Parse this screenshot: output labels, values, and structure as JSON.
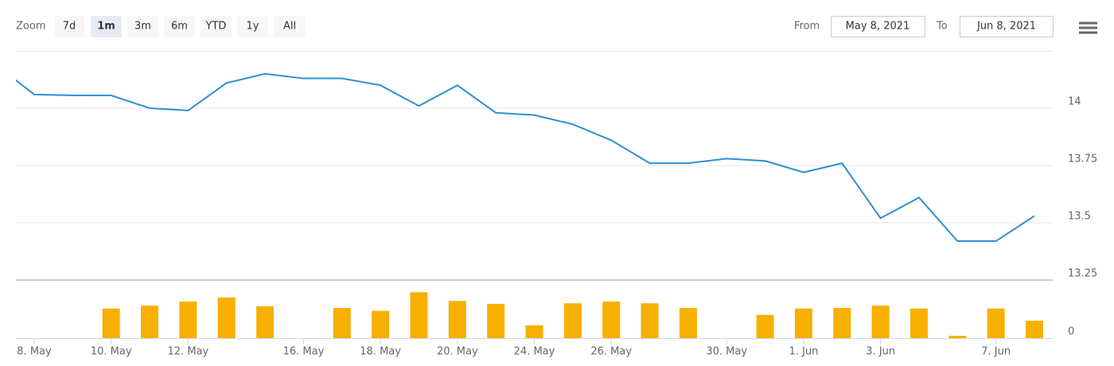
{
  "range_selector": {
    "zoom_label": "Zoom",
    "buttons": [
      "7d",
      "1m",
      "3m",
      "6m",
      "YTD",
      "1y",
      "All"
    ],
    "selected": 1,
    "from_label": "From",
    "from": "May 8, 2021",
    "to_label": "To",
    "to": "Jun 8, 2021"
  },
  "chart_data": {
    "type": "stock",
    "categories": [
      null,
      "8. May",
      null,
      "10. May",
      null,
      "12. May",
      null,
      null,
      "16. May",
      null,
      "18. May",
      null,
      "20. May",
      null,
      "24. May",
      null,
      "26. May",
      null,
      null,
      "30. May",
      null,
      "1. Jun",
      null,
      "3. Jun",
      null,
      null,
      "7. Jun",
      null
    ],
    "series": [
      {
        "type": "line",
        "color": "#2f8fd0",
        "values": [
          14.19,
          14.06,
          14.056,
          14.056,
          14.0,
          13.99,
          14.11,
          14.15,
          14.13,
          14.13,
          14.1,
          14.01,
          14.1,
          13.98,
          13.97,
          13.93,
          13.86,
          13.76,
          13.76,
          13.78,
          13.77,
          13.72,
          13.76,
          13.52,
          13.61,
          13.42,
          13.42,
          13.53
        ]
      },
      {
        "type": "bar",
        "axis": "y2",
        "color": "#f7b000",
        "values": [
          0,
          0,
          0,
          51,
          56,
          63,
          70,
          55,
          0,
          52,
          47,
          79,
          64,
          59,
          22,
          60,
          63,
          60,
          52,
          0,
          40,
          51,
          52,
          56,
          51,
          4,
          51,
          30
        ]
      }
    ],
    "ylim": [
      13.25,
      14.25
    ],
    "yticks": [
      13.25,
      13.5,
      13.75,
      14
    ],
    "y2lim": [
      0,
      100
    ],
    "y2ticks": [
      0
    ],
    "grid": true
  }
}
